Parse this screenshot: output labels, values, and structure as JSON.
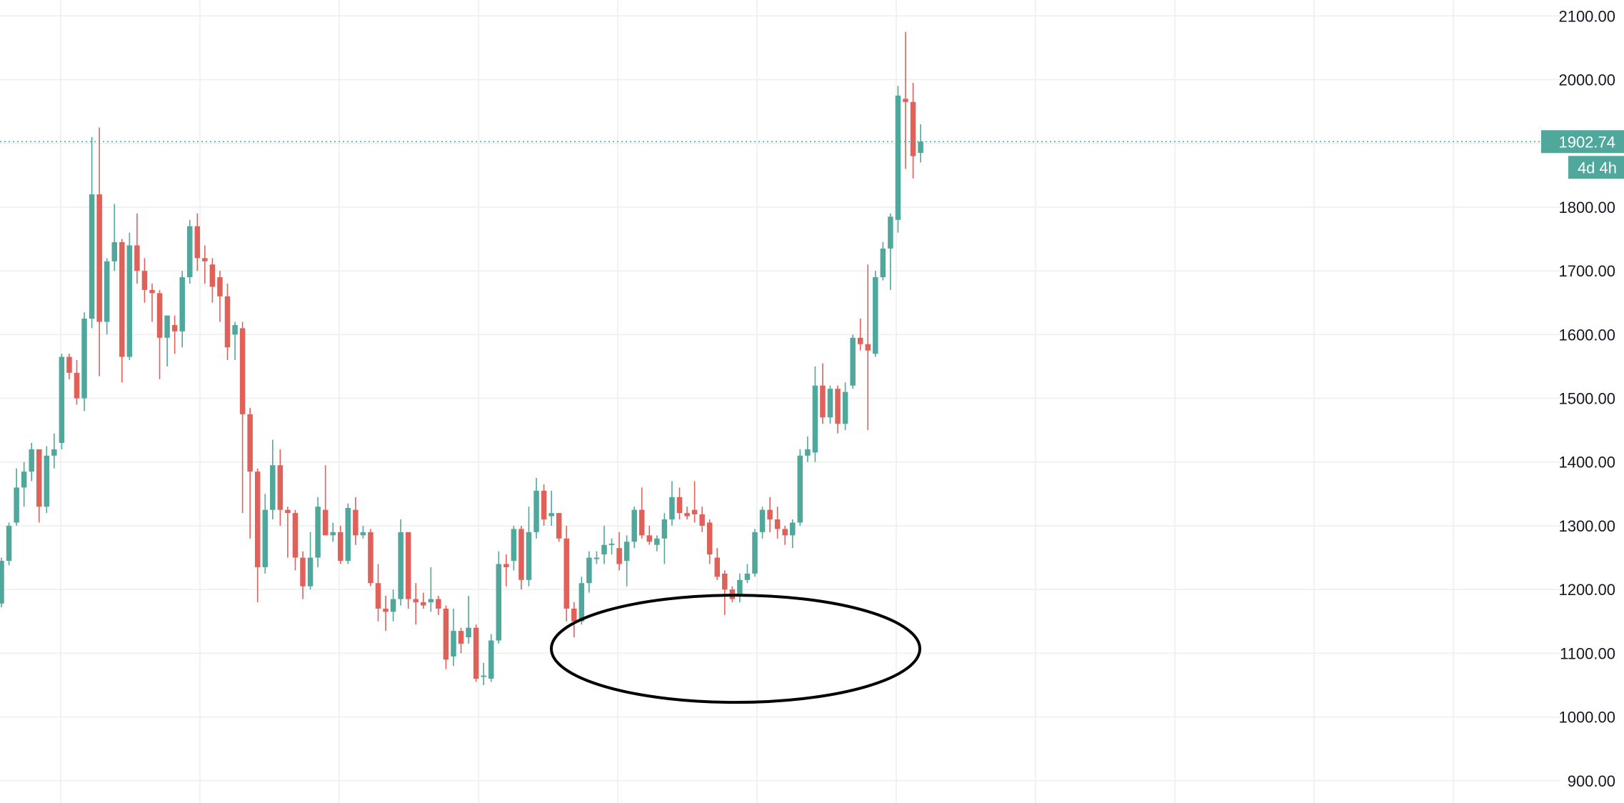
{
  "colors": {
    "up": "#4fa89b",
    "down": "#e0605a",
    "grid": "#eeeeee",
    "axis_text": "#131722",
    "price_line": "#4fa89b",
    "label_bg": "#4fa89b",
    "label_text": "#ffffff",
    "annotation": "#000000"
  },
  "price_axis": {
    "labels": [
      "900.00",
      "1000.00",
      "1100.00",
      "1200.00",
      "1300.00",
      "1400.00",
      "1500.00",
      "1600.00",
      "1700.00",
      "1800.00",
      "1900.00",
      "2000.00",
      "2100.00"
    ]
  },
  "last_price_label": "1902.74",
  "timer_label": "4d 4h",
  "annotation": {
    "shape": "ellipse",
    "target": "price lows around 1050-1190"
  },
  "chart_data": {
    "type": "candlestick",
    "ylim": [
      865,
      2125
    ],
    "grid": true,
    "last_price": 1902.74,
    "ohlc": [
      [
        1178,
        1250,
        1172,
        1245
      ],
      [
        1245,
        1305,
        1238,
        1300
      ],
      [
        1305,
        1390,
        1300,
        1360
      ],
      [
        1360,
        1400,
        1330,
        1385
      ],
      [
        1385,
        1430,
        1370,
        1420
      ],
      [
        1420,
        1415,
        1305,
        1330
      ],
      [
        1330,
        1425,
        1320,
        1410
      ],
      [
        1410,
        1445,
        1390,
        1420
      ],
      [
        1430,
        1570,
        1420,
        1565
      ],
      [
        1565,
        1570,
        1530,
        1540
      ],
      [
        1540,
        1560,
        1490,
        1500
      ],
      [
        1500,
        1635,
        1480,
        1625
      ],
      [
        1625,
        1910,
        1610,
        1820
      ],
      [
        1820,
        1925,
        1535,
        1620
      ],
      [
        1620,
        1720,
        1600,
        1715
      ],
      [
        1715,
        1805,
        1700,
        1745
      ],
      [
        1745,
        1750,
        1525,
        1565
      ],
      [
        1565,
        1760,
        1560,
        1740
      ],
      [
        1740,
        1790,
        1680,
        1700
      ],
      [
        1700,
        1720,
        1650,
        1670
      ],
      [
        1670,
        1680,
        1620,
        1665
      ],
      [
        1665,
        1670,
        1530,
        1595
      ],
      [
        1595,
        1630,
        1550,
        1630
      ],
      [
        1615,
        1630,
        1570,
        1605
      ],
      [
        1605,
        1700,
        1580,
        1690
      ],
      [
        1690,
        1780,
        1680,
        1770
      ],
      [
        1770,
        1790,
        1700,
        1720
      ],
      [
        1720,
        1740,
        1680,
        1715
      ],
      [
        1710,
        1720,
        1650,
        1675
      ],
      [
        1690,
        1700,
        1620,
        1660
      ],
      [
        1660,
        1680,
        1560,
        1580
      ],
      [
        1600,
        1620,
        1560,
        1615
      ],
      [
        1610,
        1620,
        1320,
        1475
      ],
      [
        1475,
        1485,
        1280,
        1385
      ],
      [
        1385,
        1390,
        1180,
        1235
      ],
      [
        1235,
        1350,
        1225,
        1325
      ],
      [
        1325,
        1435,
        1310,
        1395
      ],
      [
        1395,
        1420,
        1300,
        1325
      ],
      [
        1325,
        1330,
        1250,
        1320
      ],
      [
        1320,
        1325,
        1230,
        1250
      ],
      [
        1250,
        1260,
        1185,
        1205
      ],
      [
        1205,
        1290,
        1200,
        1250
      ],
      [
        1250,
        1345,
        1235,
        1330
      ],
      [
        1325,
        1395,
        1290,
        1285
      ],
      [
        1285,
        1305,
        1275,
        1290
      ],
      [
        1290,
        1300,
        1240,
        1245
      ],
      [
        1245,
        1335,
        1240,
        1328
      ],
      [
        1325,
        1345,
        1270,
        1285
      ],
      [
        1285,
        1300,
        1280,
        1290
      ],
      [
        1290,
        1295,
        1205,
        1210
      ],
      [
        1210,
        1240,
        1150,
        1170
      ],
      [
        1170,
        1190,
        1135,
        1165
      ],
      [
        1165,
        1200,
        1150,
        1185
      ],
      [
        1185,
        1310,
        1175,
        1290
      ],
      [
        1290,
        1285,
        1170,
        1185
      ],
      [
        1185,
        1210,
        1145,
        1180
      ],
      [
        1180,
        1195,
        1170,
        1175
      ],
      [
        1180,
        1235,
        1165,
        1185
      ],
      [
        1185,
        1190,
        1160,
        1170
      ],
      [
        1170,
        1175,
        1075,
        1090
      ],
      [
        1095,
        1170,
        1080,
        1135
      ],
      [
        1135,
        1140,
        1100,
        1115
      ],
      [
        1125,
        1190,
        1115,
        1140
      ],
      [
        1140,
        1145,
        1055,
        1060
      ],
      [
        1065,
        1085,
        1050,
        1065
      ],
      [
        1060,
        1130,
        1055,
        1120
      ],
      [
        1120,
        1260,
        1115,
        1240
      ],
      [
        1240,
        1255,
        1205,
        1235
      ],
      [
        1245,
        1300,
        1230,
        1295
      ],
      [
        1295,
        1300,
        1200,
        1215
      ],
      [
        1215,
        1330,
        1205,
        1290
      ],
      [
        1290,
        1375,
        1280,
        1355
      ],
      [
        1355,
        1365,
        1300,
        1310
      ],
      [
        1315,
        1355,
        1300,
        1320
      ],
      [
        1320,
        1310,
        1275,
        1280
      ],
      [
        1280,
        1300,
        1150,
        1170
      ],
      [
        1170,
        1180,
        1125,
        1150
      ],
      [
        1150,
        1220,
        1145,
        1210
      ],
      [
        1210,
        1260,
        1195,
        1250
      ],
      [
        1250,
        1260,
        1240,
        1250
      ],
      [
        1255,
        1300,
        1240,
        1270
      ],
      [
        1270,
        1280,
        1255,
        1272
      ],
      [
        1265,
        1290,
        1230,
        1240
      ],
      [
        1245,
        1285,
        1205,
        1275
      ],
      [
        1275,
        1330,
        1265,
        1325
      ],
      [
        1325,
        1360,
        1280,
        1285
      ],
      [
        1285,
        1300,
        1270,
        1275
      ],
      [
        1270,
        1285,
        1260,
        1280
      ],
      [
        1280,
        1320,
        1240,
        1310
      ],
      [
        1310,
        1370,
        1300,
        1345
      ],
      [
        1345,
        1360,
        1310,
        1320
      ],
      [
        1320,
        1330,
        1310,
        1315
      ],
      [
        1325,
        1370,
        1305,
        1318
      ],
      [
        1318,
        1330,
        1290,
        1300
      ],
      [
        1305,
        1310,
        1240,
        1255
      ],
      [
        1250,
        1265,
        1215,
        1220
      ],
      [
        1225,
        1230,
        1160,
        1200
      ],
      [
        1200,
        1205,
        1180,
        1185
      ],
      [
        1190,
        1225,
        1180,
        1215
      ],
      [
        1215,
        1240,
        1210,
        1225
      ],
      [
        1225,
        1295,
        1220,
        1290
      ],
      [
        1290,
        1330,
        1280,
        1325
      ],
      [
        1325,
        1345,
        1290,
        1310
      ],
      [
        1310,
        1330,
        1280,
        1295
      ],
      [
        1295,
        1300,
        1270,
        1285
      ],
      [
        1285,
        1310,
        1265,
        1305
      ],
      [
        1305,
        1420,
        1300,
        1410
      ],
      [
        1410,
        1440,
        1400,
        1420
      ],
      [
        1415,
        1550,
        1400,
        1520
      ],
      [
        1520,
        1555,
        1460,
        1470
      ],
      [
        1470,
        1520,
        1460,
        1515
      ],
      [
        1515,
        1520,
        1445,
        1460
      ],
      [
        1460,
        1525,
        1450,
        1510
      ],
      [
        1520,
        1600,
        1515,
        1595
      ],
      [
        1595,
        1625,
        1575,
        1585
      ],
      [
        1585,
        1710,
        1450,
        1575
      ],
      [
        1570,
        1700,
        1565,
        1690
      ],
      [
        1690,
        1745,
        1685,
        1735
      ],
      [
        1735,
        1790,
        1670,
        1785
      ],
      [
        1780,
        1990,
        1760,
        1975
      ],
      [
        1970,
        2075,
        1860,
        1965
      ],
      [
        1965,
        1995,
        1845,
        1880
      ],
      [
        1885,
        1930,
        1870,
        1902.74
      ]
    ]
  }
}
